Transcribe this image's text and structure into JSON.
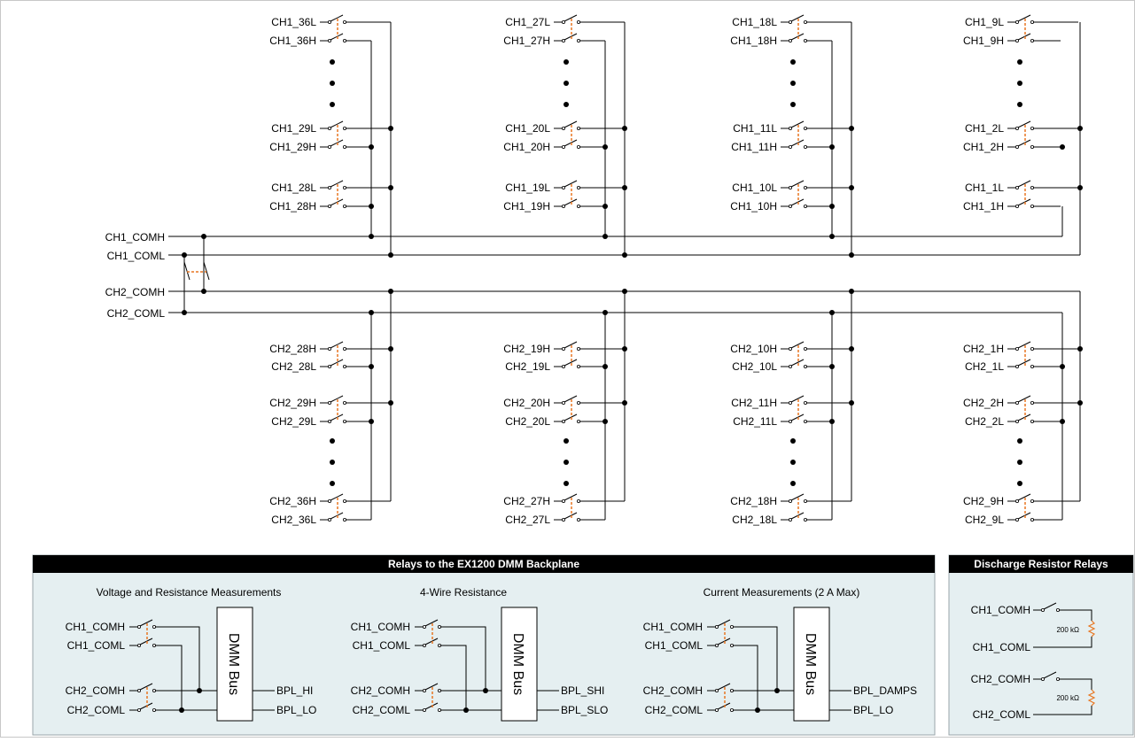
{
  "colors": {
    "wire": "#000000",
    "mechanical_link": "#e87722",
    "panel_bg": "#e5eff1",
    "panel_header": "#000000"
  },
  "upper_groups": [
    {
      "top_pair": [
        "CH1_36L",
        "CH1_36H"
      ],
      "mid_pair": [
        "CH1_29L",
        "CH1_29H"
      ],
      "bottom_pair": [
        "CH1_28L",
        "CH1_28H"
      ]
    },
    {
      "top_pair": [
        "CH1_27L",
        "CH1_27H"
      ],
      "mid_pair": [
        "CH1_20L",
        "CH1_20H"
      ],
      "bottom_pair": [
        "CH1_19L",
        "CH1_19H"
      ]
    },
    {
      "top_pair": [
        "CH1_18L",
        "CH1_18H"
      ],
      "mid_pair": [
        "CH1_11L",
        "CH1_11H"
      ],
      "bottom_pair": [
        "CH1_10L",
        "CH1_10H"
      ]
    },
    {
      "top_pair": [
        "CH1_9L",
        "CH1_9H"
      ],
      "mid_pair": [
        "CH1_2L",
        "CH1_2H"
      ],
      "bottom_pair": [
        "CH1_1L",
        "CH1_1H"
      ]
    }
  ],
  "lower_groups": [
    {
      "top_pair": [
        "CH2_28H",
        "CH2_28L"
      ],
      "mid_pair": [
        "CH2_29H",
        "CH2_29L"
      ],
      "bottom_pair": [
        "CH2_36H",
        "CH2_36L"
      ]
    },
    {
      "top_pair": [
        "CH2_19H",
        "CH2_19L"
      ],
      "mid_pair": [
        "CH2_20H",
        "CH2_20L"
      ],
      "bottom_pair": [
        "CH2_27H",
        "CH2_27L"
      ]
    },
    {
      "top_pair": [
        "CH2_10H",
        "CH2_10L"
      ],
      "mid_pair": [
        "CH2_11H",
        "CH2_11L"
      ],
      "bottom_pair": [
        "CH2_18H",
        "CH2_18L"
      ]
    },
    {
      "top_pair": [
        "CH2_1H",
        "CH2_1L"
      ],
      "mid_pair": [
        "CH2_2H",
        "CH2_2L"
      ],
      "bottom_pair": [
        "CH2_9H",
        "CH2_9L"
      ]
    }
  ],
  "buses": [
    "CH1_COMH",
    "CH1_COML",
    "CH2_COMH",
    "CH2_COML"
  ],
  "backplane_panel": {
    "title": "Relays to the EX1200 DMM Backplane",
    "sections": [
      {
        "heading": "Voltage and Resistance Measurements",
        "inputs": [
          "CH1_COMH",
          "CH1_COML",
          "CH2_COMH",
          "CH2_COML"
        ],
        "block": "DMM Bus",
        "outputs": [
          "BPL_HI",
          "BPL_LO"
        ]
      },
      {
        "heading": "4-Wire Resistance",
        "inputs": [
          "CH1_COMH",
          "CH1_COML",
          "CH2_COMH",
          "CH2_COML"
        ],
        "block": "DMM Bus",
        "outputs": [
          "BPL_SHI",
          "BPL_SLO"
        ]
      },
      {
        "heading": "Current Measurements (2 A Max)",
        "inputs": [
          "CH1_COMH",
          "CH1_COML",
          "CH2_COMH",
          "CH2_COML"
        ],
        "block": "DMM Bus",
        "outputs": [
          "BPL_DAMPS",
          "BPL_LO"
        ]
      }
    ]
  },
  "discharge_panel": {
    "title": "Discharge Resistor Relays",
    "circuits": [
      {
        "top": "CH1_COMH",
        "bottom": "CH1_COML",
        "resistor": "200 kΩ"
      },
      {
        "top": "CH2_COMH",
        "bottom": "CH2_COML",
        "resistor": "200 kΩ"
      }
    ]
  }
}
